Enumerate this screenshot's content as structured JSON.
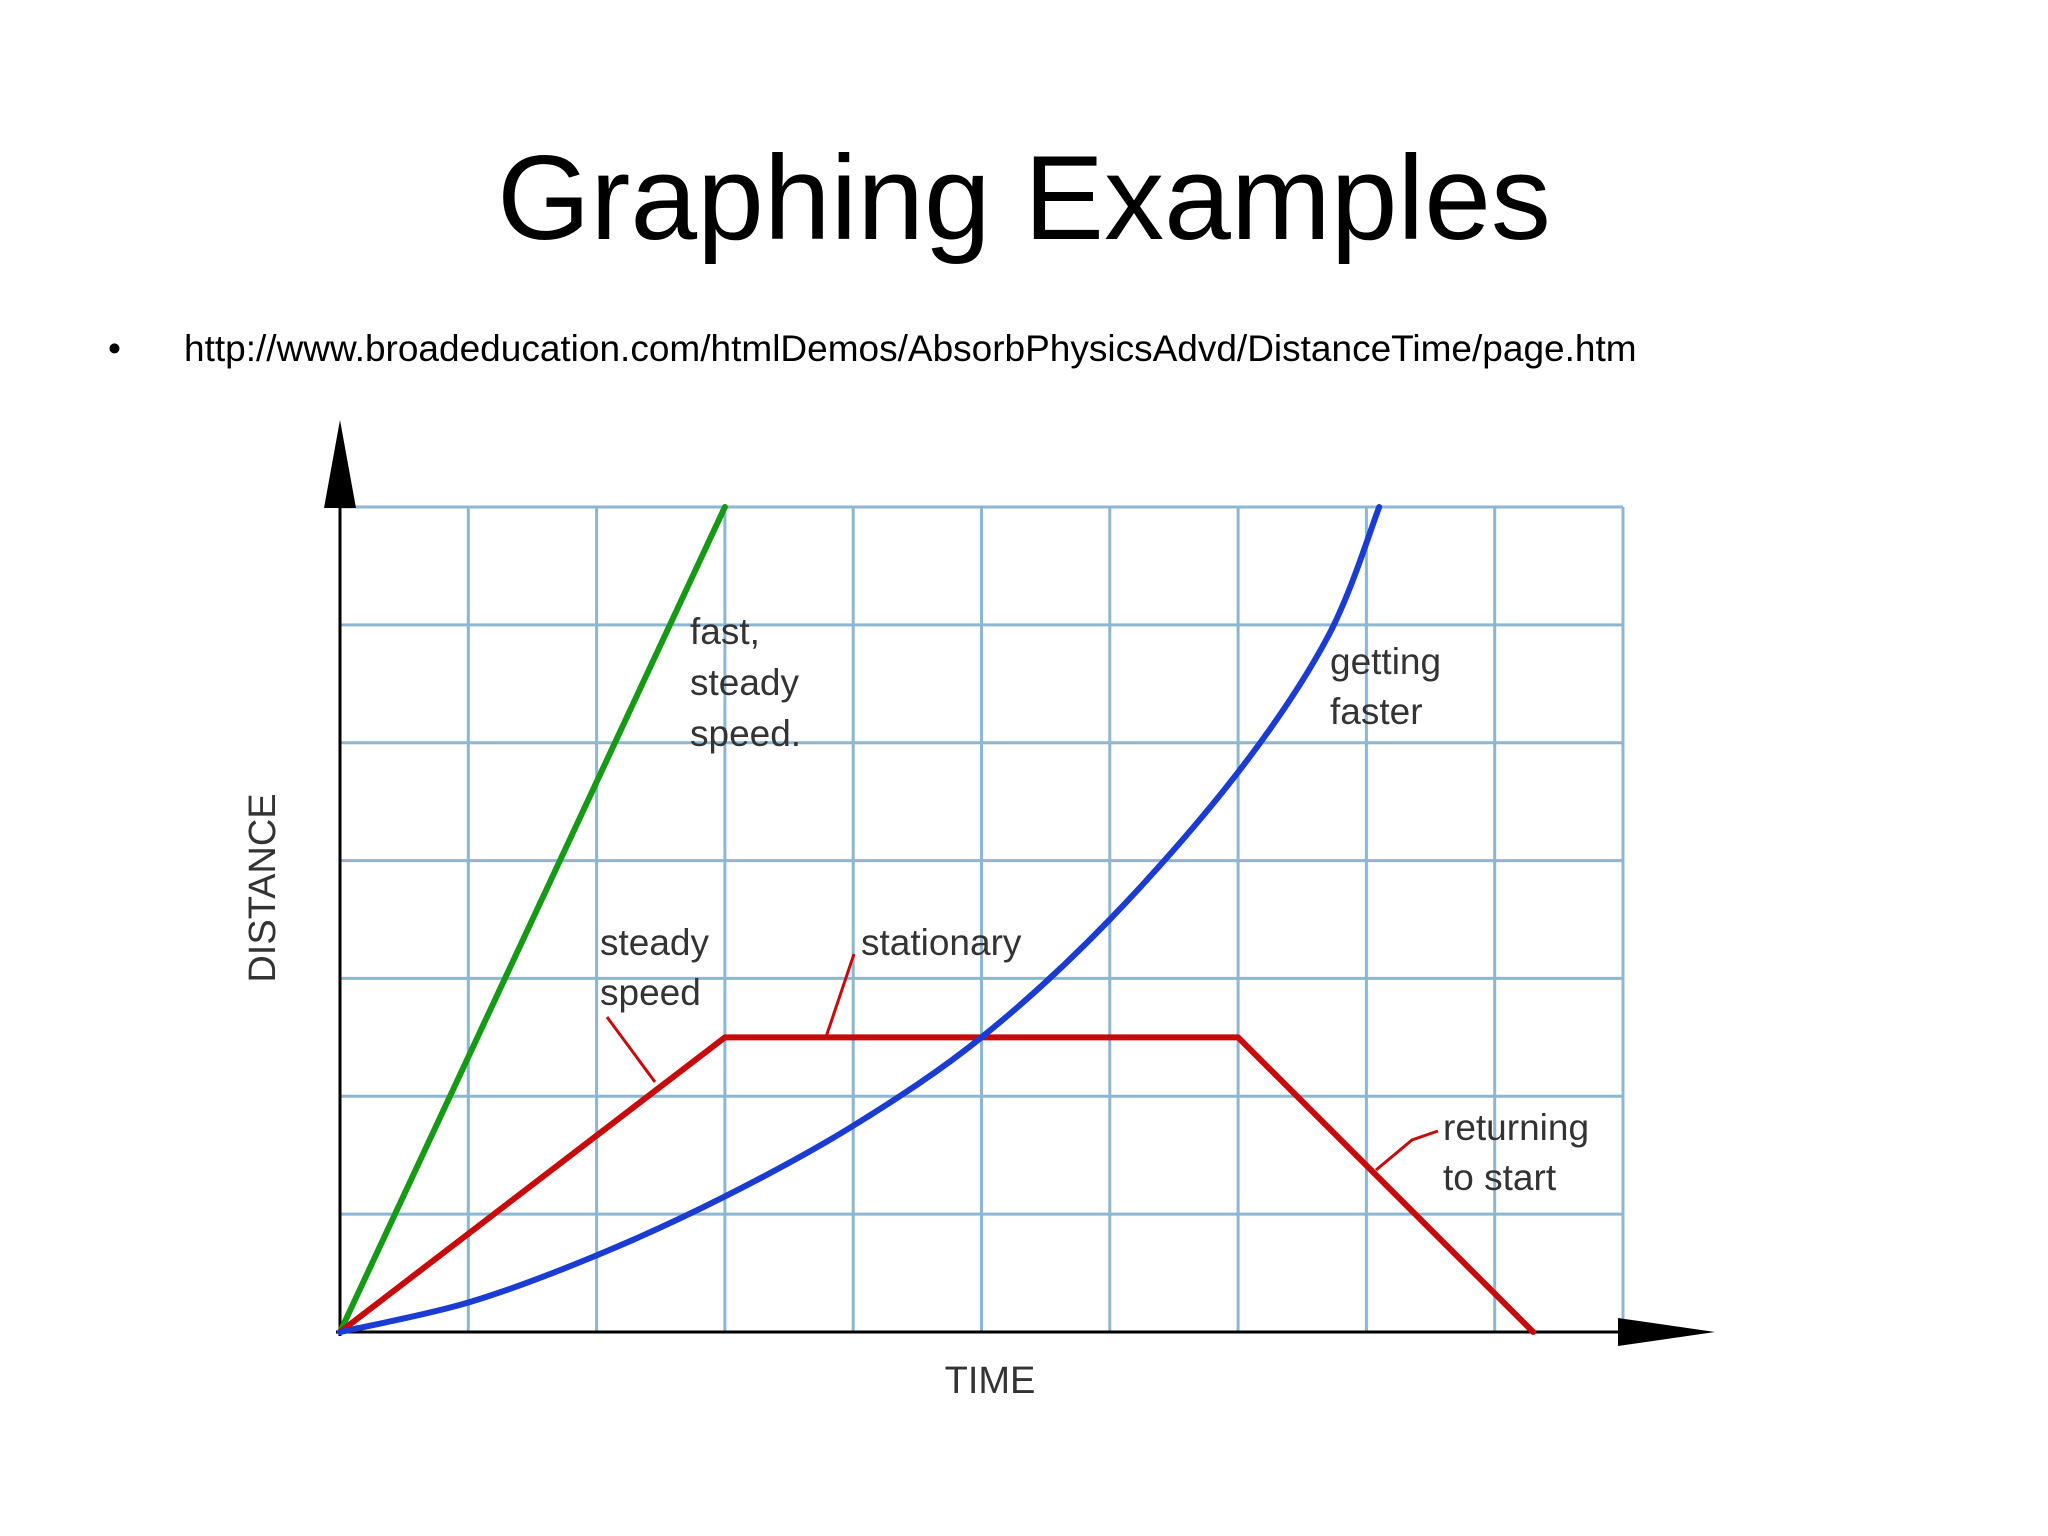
{
  "slide": {
    "title": "Graphing Examples",
    "bullet": "•",
    "link_text": "http://www.broadeducation.com/htmlDemos/AbsorbPhysicsAdvd/DistanceTime/page.htm"
  },
  "chart_data": {
    "type": "line",
    "xlabel": "TIME",
    "ylabel": "DISTANCE",
    "xlim": [
      0,
      10
    ],
    "ylim": [
      0,
      7
    ],
    "grid": true,
    "axis_ticks_labeled": false,
    "series": [
      {
        "key": "fast",
        "color": "#169a16",
        "x": [
          0,
          3
        ],
        "y": [
          0,
          7
        ]
      },
      {
        "key": "red",
        "color": "#c80a0a",
        "x": [
          0,
          3,
          7,
          9.3
        ],
        "y": [
          0,
          2.5,
          2.5,
          0
        ]
      },
      {
        "key": "faster",
        "color": "#1a3cd2",
        "x": [
          0,
          1,
          2,
          3,
          4,
          5,
          6,
          7,
          7.7,
          8.1
        ],
        "y": [
          0,
          0.25,
          0.65,
          1.15,
          1.75,
          2.5,
          3.5,
          4.75,
          5.9,
          7
        ]
      }
    ],
    "annotations": [
      {
        "key": "fast",
        "lines": [
          "fast,",
          "steady",
          "speed."
        ]
      },
      {
        "key": "getting-faster",
        "lines": [
          "getting",
          "faster"
        ]
      },
      {
        "key": "steady-speed",
        "lines": [
          "steady",
          "speed"
        ]
      },
      {
        "key": "stationary",
        "lines": [
          "stationary"
        ]
      },
      {
        "key": "returning",
        "lines": [
          "returning",
          "to start"
        ]
      }
    ]
  }
}
